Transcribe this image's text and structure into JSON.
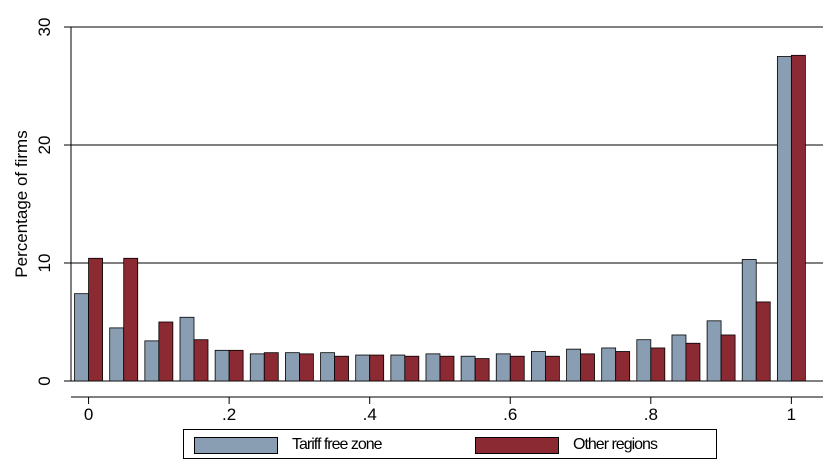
{
  "chart_data": {
    "type": "bar",
    "ylabel": "Percentage of firms",
    "xlabel": "",
    "ylim": [
      0,
      30
    ],
    "xlim": [
      -0.025,
      1.045
    ],
    "y_ticks": [
      0,
      10,
      20,
      30
    ],
    "y_tick_labels": [
      "0",
      "10",
      "20",
      "30"
    ],
    "x_ticks": [
      0,
      0.2,
      0.4,
      0.6,
      0.8,
      1
    ],
    "x_tick_labels": [
      "0",
      ".2",
      ".4",
      ".6",
      ".8",
      "1"
    ],
    "grid": "horizontal",
    "legend_position": "bottom",
    "x": [
      0,
      0.05,
      0.1,
      0.15,
      0.2,
      0.25,
      0.3,
      0.35,
      0.4,
      0.45,
      0.5,
      0.55,
      0.6,
      0.65,
      0.7,
      0.75,
      0.8,
      0.85,
      0.9,
      0.95,
      1.0
    ],
    "series": [
      {
        "name": "Tariff free zone",
        "color": "#8a9eb3",
        "values": [
          7.4,
          4.5,
          3.4,
          5.4,
          2.6,
          2.3,
          2.4,
          2.4,
          2.2,
          2.2,
          2.3,
          2.1,
          2.3,
          2.5,
          2.7,
          2.8,
          3.5,
          3.9,
          5.1,
          10.3,
          27.5
        ]
      },
      {
        "name": "Other regions",
        "color": "#8b2a33",
        "values": [
          10.4,
          10.4,
          5.0,
          3.5,
          2.6,
          2.4,
          2.3,
          2.1,
          2.2,
          2.1,
          2.1,
          1.9,
          2.1,
          2.1,
          2.3,
          2.5,
          2.8,
          3.2,
          3.9,
          6.7,
          27.6
        ]
      }
    ]
  }
}
